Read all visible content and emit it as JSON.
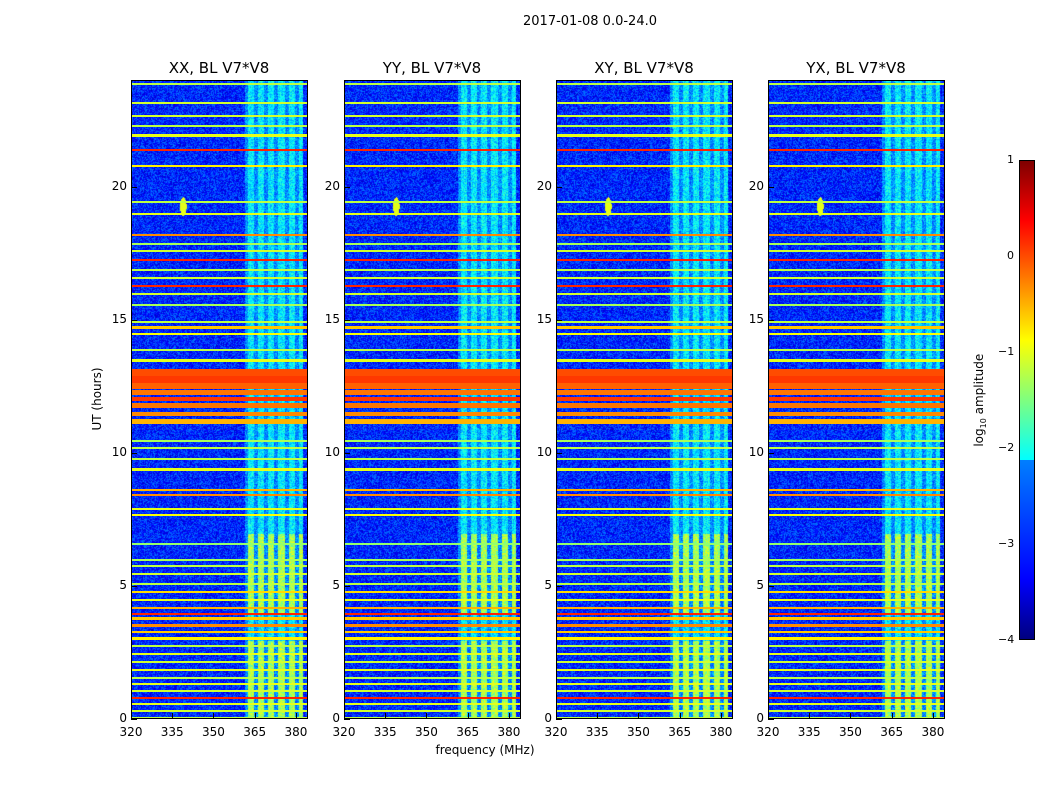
{
  "chart_data": {
    "type": "heatmap",
    "title": "2017-01-08 0.0-24.0",
    "xlabel": "frequency (MHz)",
    "ylabel": "UT (hours)",
    "xlim": [
      320,
      384.4
    ],
    "ylim": [
      0,
      24
    ],
    "xticks": [
      "320",
      "335",
      "350",
      "365",
      "380"
    ],
    "xtick_values": [
      320,
      335,
      350,
      365,
      380
    ],
    "yticks": [
      "0",
      "5",
      "10",
      "15",
      "20"
    ],
    "ytick_values": [
      0,
      5,
      10,
      15,
      20
    ],
    "panels": [
      {
        "title": "XX, BL V7*V8"
      },
      {
        "title": "YY, BL V7*V8"
      },
      {
        "title": "XY, BL V7*V8"
      },
      {
        "title": "YX, BL V7*V8"
      }
    ],
    "colorbar": {
      "label_prefix": "log",
      "label_sub": "10",
      "label_suffix": " amplitude",
      "range": [
        -4,
        1
      ],
      "ticks": [
        "1",
        "0",
        "−1",
        "−2",
        "−3",
        "−4"
      ],
      "tick_values": [
        1,
        0,
        -1,
        -2,
        -3,
        -4
      ]
    },
    "background_level": -3.2,
    "horizontal_bands": [
      [
        0.05,
        0.1,
        -1.2
      ],
      [
        0.35,
        0.06,
        -1.1
      ],
      [
        0.6,
        0.06,
        -1.0
      ],
      [
        0.85,
        0.06,
        0.2
      ],
      [
        1.1,
        0.06,
        -1.1
      ],
      [
        1.35,
        0.06,
        -1.0
      ],
      [
        1.6,
        0.06,
        -1.2
      ],
      [
        1.9,
        0.06,
        -1.0
      ],
      [
        2.2,
        0.06,
        -1.1
      ],
      [
        2.5,
        0.06,
        -1.0
      ],
      [
        2.8,
        0.06,
        -1.2
      ],
      [
        3.05,
        0.1,
        -0.8
      ],
      [
        3.3,
        0.1,
        -0.6
      ],
      [
        3.55,
        0.12,
        -0.3
      ],
      [
        3.8,
        0.1,
        -0.6
      ],
      [
        4.0,
        0.06,
        0.2
      ],
      [
        4.2,
        0.08,
        -0.5
      ],
      [
        4.5,
        0.06,
        -1.0
      ],
      [
        4.8,
        0.06,
        -0.7
      ],
      [
        5.1,
        0.06,
        -1.2
      ],
      [
        5.5,
        0.06,
        -1.1
      ],
      [
        5.8,
        0.08,
        -1.2
      ],
      [
        6.0,
        0.06,
        -1.3
      ],
      [
        6.6,
        0.06,
        -1.4
      ],
      [
        7.7,
        0.08,
        -0.9
      ],
      [
        7.95,
        0.06,
        -1.0
      ],
      [
        8.45,
        0.1,
        -0.3
      ],
      [
        8.65,
        0.08,
        -0.5
      ],
      [
        9.4,
        0.1,
        -1.0
      ],
      [
        9.8,
        0.08,
        -1.2
      ],
      [
        10.2,
        0.08,
        -1.2
      ],
      [
        10.5,
        0.06,
        -1.3
      ],
      [
        11.2,
        0.2,
        -0.5
      ],
      [
        11.5,
        0.15,
        -0.3
      ],
      [
        11.8,
        0.2,
        -0.2
      ],
      [
        12.05,
        0.15,
        0.1
      ],
      [
        12.3,
        0.2,
        -0.2
      ],
      [
        12.55,
        0.2,
        -0.1
      ],
      [
        12.8,
        0.25,
        0.1
      ],
      [
        13.05,
        0.25,
        0.0
      ],
      [
        13.5,
        0.1,
        -1.0
      ],
      [
        13.9,
        0.08,
        -1.2
      ],
      [
        14.5,
        0.1,
        -0.9
      ],
      [
        14.75,
        0.1,
        -0.6
      ],
      [
        14.95,
        0.06,
        -1.2
      ],
      [
        15.6,
        0.06,
        -1.3
      ],
      [
        16.0,
        0.08,
        -1.1
      ],
      [
        16.3,
        0.06,
        0.2
      ],
      [
        16.6,
        0.06,
        -1.1
      ],
      [
        16.9,
        0.08,
        -1.2
      ],
      [
        17.3,
        0.06,
        0.2
      ],
      [
        17.6,
        0.08,
        -1.1
      ],
      [
        17.9,
        0.06,
        -1.3
      ],
      [
        18.2,
        0.08,
        -0.3
      ],
      [
        19.0,
        0.06,
        -1.0
      ],
      [
        19.45,
        0.06,
        -1.2
      ],
      [
        20.8,
        0.06,
        -0.8
      ],
      [
        21.4,
        0.06,
        0.2
      ],
      [
        21.95,
        0.1,
        -1.0
      ],
      [
        22.3,
        0.06,
        -1.2
      ],
      [
        22.7,
        0.06,
        -1.1
      ],
      [
        23.2,
        0.06,
        -1.1
      ],
      [
        23.9,
        0.06,
        -1.2
      ]
    ],
    "rfi_region": {
      "freq": [
        361,
        382
      ],
      "level": -2.2,
      "bright_hours": [
        [
          0,
          3
        ],
        [
          4,
          7
        ]
      ],
      "bright_level": -1.3
    },
    "point_source": {
      "freq": 338.5,
      "hour": 19.3,
      "level": -1.0
    }
  }
}
